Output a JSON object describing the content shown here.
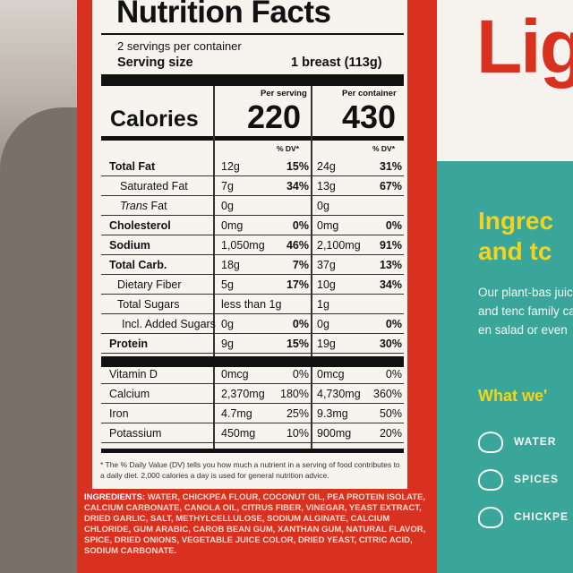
{
  "label": {
    "title": "Nutrition Facts",
    "servings": "2 servings per container",
    "serving_size_label": "Serving size",
    "serving_size_value": "1 breast (113g)",
    "per_serving": "Per serving",
    "per_container": "Per container",
    "calories_label": "Calories",
    "calories_serving": "220",
    "calories_container": "430",
    "dv_header": "% DV*",
    "rows": [
      {
        "name": "Total Fat",
        "a": "12g",
        "ap": "15%",
        "b": "24g",
        "bp": "31%"
      },
      {
        "name": "Saturated Fat",
        "a": "7g",
        "ap": "34%",
        "b": "13g",
        "bp": "67%"
      },
      {
        "name": "Trans Fat",
        "a": "0g",
        "ap": "",
        "b": "0g",
        "bp": ""
      },
      {
        "name": "Cholesterol",
        "a": "0mg",
        "ap": "0%",
        "b": "0mg",
        "bp": "0%"
      },
      {
        "name": "Sodium",
        "a": "1,050mg",
        "ap": "46%",
        "b": "2,100mg",
        "bp": "91%"
      },
      {
        "name": "Total Carb.",
        "a": "18g",
        "ap": "7%",
        "b": "37g",
        "bp": "13%"
      },
      {
        "name": "Dietary Fiber",
        "a": "5g",
        "ap": "17%",
        "b": "10g",
        "bp": "34%"
      },
      {
        "name": "Total Sugars",
        "a": "less than 1g",
        "ap": "",
        "b": "1g",
        "bp": ""
      },
      {
        "name": "Incl. Added Sugars",
        "a": "0g",
        "ap": "0%",
        "b": "0g",
        "bp": "0%"
      },
      {
        "name": "Protein",
        "a": "9g",
        "ap": "15%",
        "b": "19g",
        "bp": "30%"
      },
      {
        "name": "Vitamin D",
        "a": "0mcg",
        "ap": "0%",
        "b": "0mcg",
        "bp": "0%"
      },
      {
        "name": "Calcium",
        "a": "2,370mg",
        "ap": "180%",
        "b": "4,730mg",
        "bp": "360%"
      },
      {
        "name": "Iron",
        "a": "4.7mg",
        "ap": "25%",
        "b": "9.3mg",
        "bp": "50%"
      },
      {
        "name": "Potassium",
        "a": "450mg",
        "ap": "10%",
        "b": "900mg",
        "bp": "20%"
      }
    ],
    "footnote": "* The % Daily Value (DV) tells you how much a nutrient in a serving of food contributes to a daily diet. 2,000 calories a day is used for general nutrition advice.",
    "ingredients_label": "INGREDIENTS:",
    "ingredients_text": "WATER, CHICKPEA FLOUR, COCONUT OIL, PEA PROTEIN ISOLATE, CALCIUM CARBONATE, CANOLA OIL, CITRUS FIBER, VINEGAR, YEAST EXTRACT, DRIED GARLIC, SALT, METHYLCELLULOSE, SODIUM ALGINATE, CALCIUM CHLORIDE, GUM ARABIC, CAROB BEAN GUM, XANTHAN GUM, NATURAL FLAVOR, SPICE, DRIED ONIONS, VEGETABLE JUICE COLOR, DRIED YEAST, CITRIC ACID, SODIUM CARBONATE."
  },
  "package": {
    "brand": "Lig",
    "ingredients_heading_1": "Ingrec",
    "ingredients_heading_2": "and tc",
    "description": "Our plant-bas juicy and tenc family can en salad or even",
    "what_heading": "What we'",
    "items": [
      "WATER",
      "SPICES",
      "CHICKPE"
    ]
  },
  "colors": {
    "red": "#d8311f",
    "teal": "#3aa69a",
    "yellow": "#f4d31f"
  }
}
